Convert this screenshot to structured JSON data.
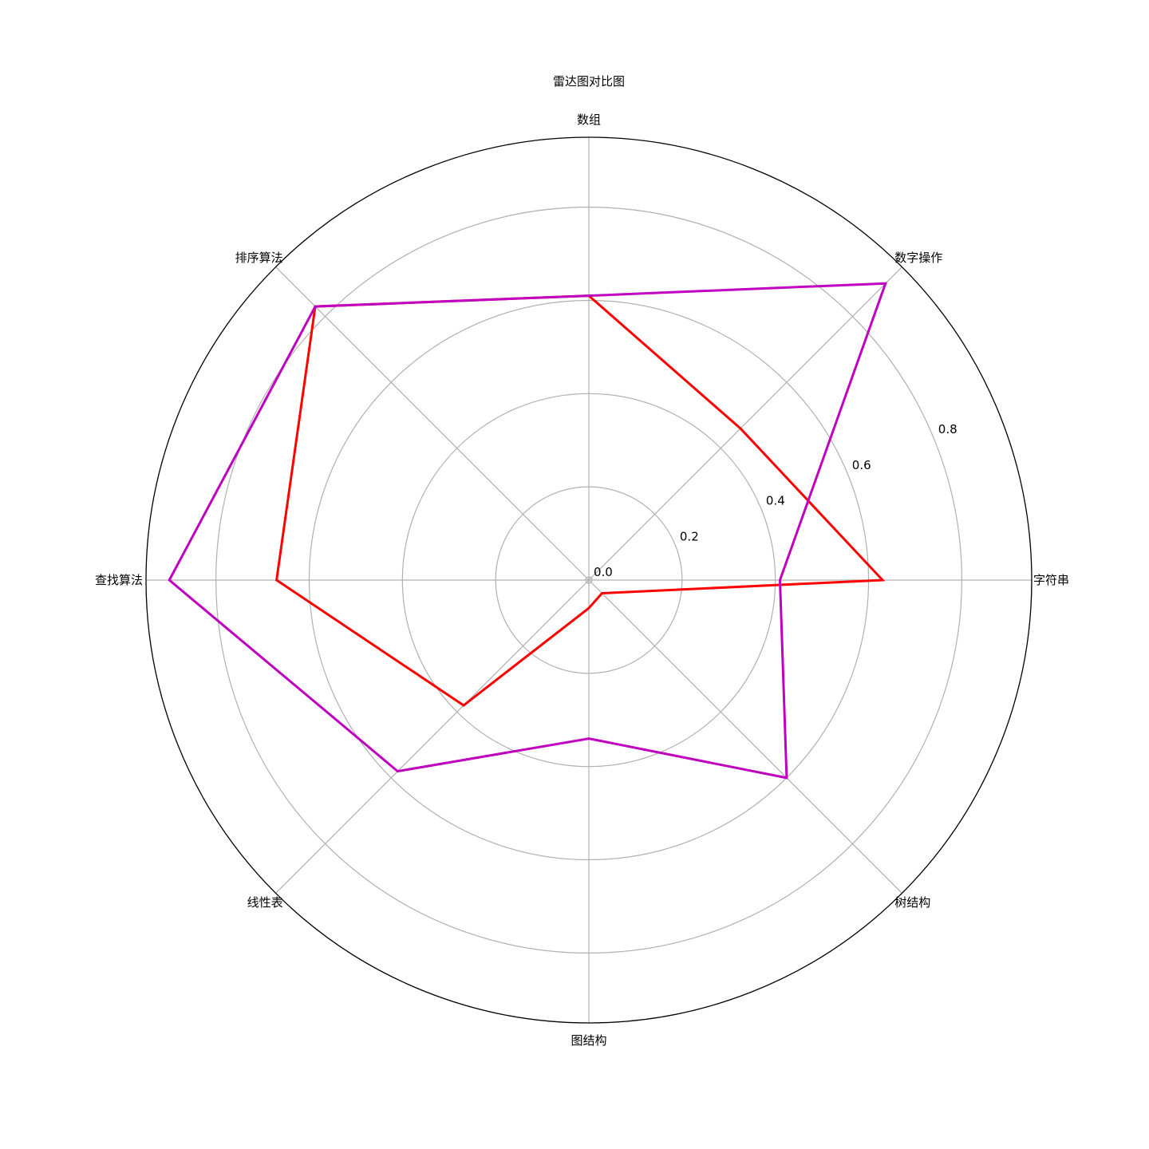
{
  "chart_data": {
    "type": "radar",
    "title": "雷达图对比图",
    "categories": [
      "数组",
      "数字操作",
      "字符串",
      "树结构",
      "图结构",
      "线性表",
      "查找算法",
      "排序算法"
    ],
    "rticks": [
      "0.0",
      "0.2",
      "0.4",
      "0.6",
      "0.8"
    ],
    "rtick_values": [
      0.0,
      0.2,
      0.4,
      0.6,
      0.8
    ],
    "rmax": 0.95,
    "grid": true,
    "series": [
      {
        "color": "#ff0000",
        "values": [
          0.61,
          0.46,
          0.63,
          0.04,
          0.06,
          0.38,
          0.67,
          0.83
        ]
      },
      {
        "color": "#bf00bf",
        "values": [
          0.61,
          0.9,
          0.41,
          0.6,
          0.34,
          0.58,
          0.9,
          0.83
        ]
      }
    ]
  }
}
